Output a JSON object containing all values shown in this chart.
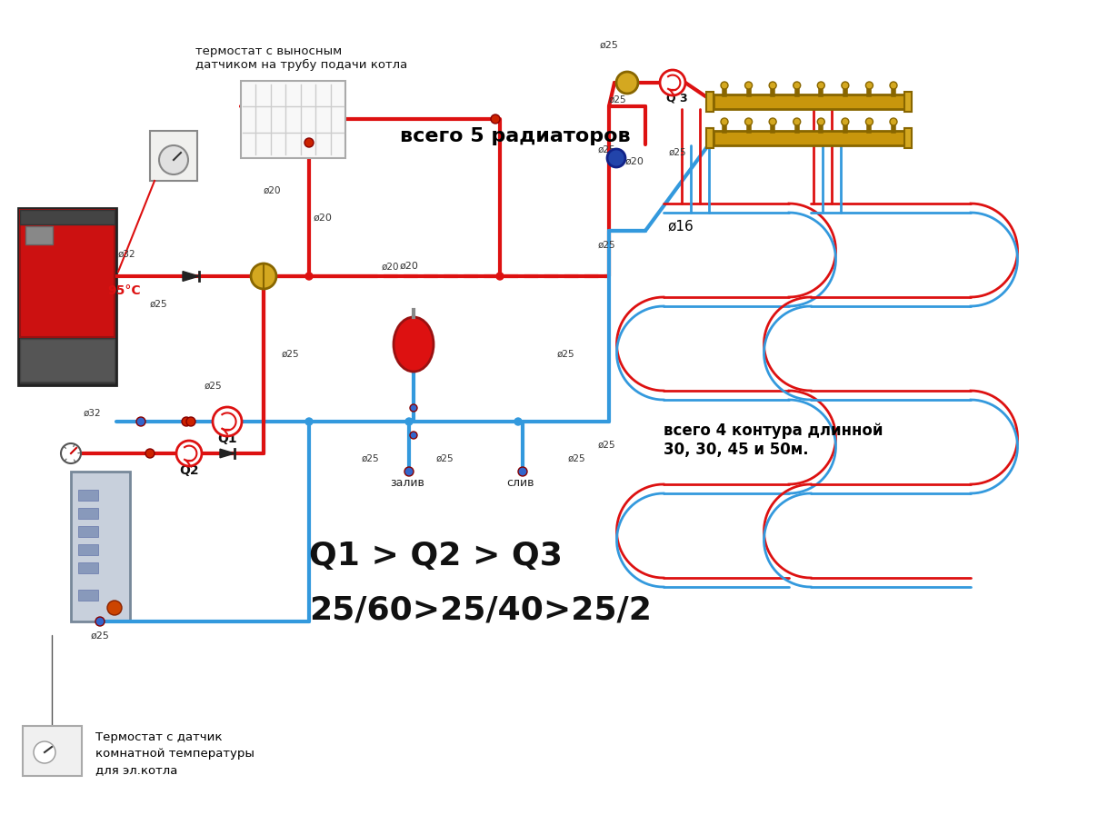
{
  "bg_color": "#ffffff",
  "red": "#dd1111",
  "blue": "#3399dd",
  "dark_red": "#bb0000",
  "pipe_lw": 3,
  "texts": {
    "thermostat_top": "термостат с выносным\nдатчиком на трубу подачи котла",
    "radiators": "всего 5 радиаторов",
    "temp_95": "95°С",
    "q1": "Q1",
    "q2": "Q2",
    "q3": "Q 3",
    "phi16": "ø16",
    "floor_loops": "всего 4 контура длинной\n30, 30, 45 и 50м.",
    "formula_line1": "Q1 > Q2 > Q3",
    "formula_line2": "25/60>25/40>25/2",
    "thermostat_bot1": "Термостат с датчик",
    "thermostat_bot2": "комнатной температуры",
    "thermostat_bot3": "для эл.котла",
    "zaliv": "залив",
    "sliv": "слив"
  },
  "pipe_labels": [
    [
      118,
      258,
      "ø32"
    ],
    [
      82,
      430,
      "ø32"
    ],
    [
      156,
      335,
      "ø25"
    ],
    [
      218,
      418,
      "ø25"
    ],
    [
      282,
      210,
      "ø20"
    ],
    [
      410,
      330,
      "ø20"
    ],
    [
      355,
      385,
      "ø25"
    ],
    [
      390,
      540,
      "ø25"
    ],
    [
      470,
      540,
      "ø25"
    ],
    [
      605,
      390,
      "ø25"
    ],
    [
      615,
      540,
      "ø25"
    ],
    [
      650,
      200,
      "ø25"
    ],
    [
      658,
      100,
      "ø25"
    ],
    [
      677,
      165,
      "ø20"
    ],
    [
      728,
      175,
      "ø25"
    ],
    [
      746,
      245,
      "ø25"
    ],
    [
      648,
      470,
      "ø25"
    ]
  ]
}
